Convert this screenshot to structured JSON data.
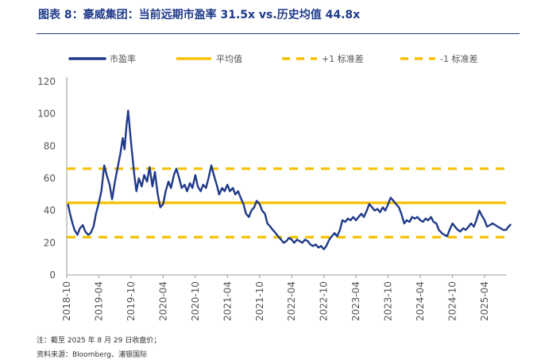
{
  "figure": {
    "title": "图表 8：豪威集团：当前远期市盈率 31.5x vs.历史均值 44.8x",
    "note": "注：截至 2025 年 8 月 29 日收盘价；",
    "source": "资料来源：Bloomberg、浦银国际"
  },
  "chart_data": {
    "type": "line",
    "title": "",
    "xlabel": "",
    "ylabel": "",
    "ylim": [
      0,
      120
    ],
    "yticks": [
      0,
      20,
      40,
      60,
      80,
      100,
      120
    ],
    "xlim": [
      "2018-10",
      "2025-08"
    ],
    "xticks": [
      "2018-10",
      "2019-04",
      "2019-10",
      "2020-04",
      "2020-10",
      "2021-04",
      "2021-10",
      "2022-04",
      "2022-10",
      "2023-04",
      "2023-10",
      "2024-04",
      "2024-10",
      "2025-04"
    ],
    "grid": false,
    "legend_position": "top",
    "colors": {
      "pe": "#1f3a8a",
      "mean": "#f5c000",
      "band": "#f5c000"
    },
    "series": [
      {
        "name": "市盈率",
        "style": "solid-thick",
        "points": [
          [
            "2018-10-08",
            44
          ],
          [
            "2018-10-20",
            38
          ],
          [
            "2018-11-01",
            33
          ],
          [
            "2018-11-15",
            28
          ],
          [
            "2018-12-01",
            25
          ],
          [
            "2018-12-15",
            29
          ],
          [
            "2019-01-01",
            31
          ],
          [
            "2019-01-15",
            27
          ],
          [
            "2019-02-01",
            25
          ],
          [
            "2019-02-15",
            26
          ],
          [
            "2019-03-01",
            30
          ],
          [
            "2019-03-15",
            38
          ],
          [
            "2019-04-01",
            45
          ],
          [
            "2019-04-15",
            52
          ],
          [
            "2019-05-01",
            68
          ],
          [
            "2019-05-15",
            62
          ],
          [
            "2019-06-01",
            56
          ],
          [
            "2019-06-15",
            47
          ],
          [
            "2019-07-01",
            58
          ],
          [
            "2019-07-15",
            66
          ],
          [
            "2019-08-01",
            75
          ],
          [
            "2019-08-15",
            85
          ],
          [
            "2019-08-25",
            78
          ],
          [
            "2019-09-05",
            92
          ],
          [
            "2019-09-15",
            102
          ],
          [
            "2019-09-25",
            90
          ],
          [
            "2019-10-05",
            78
          ],
          [
            "2019-10-20",
            62
          ],
          [
            "2019-11-01",
            52
          ],
          [
            "2019-11-15",
            60
          ],
          [
            "2019-12-01",
            55
          ],
          [
            "2019-12-15",
            62
          ],
          [
            "2020-01-01",
            58
          ],
          [
            "2020-01-15",
            67
          ],
          [
            "2020-02-01",
            55
          ],
          [
            "2020-02-15",
            64
          ],
          [
            "2020-03-01",
            50
          ],
          [
            "2020-03-15",
            42
          ],
          [
            "2020-04-01",
            44
          ],
          [
            "2020-04-15",
            52
          ],
          [
            "2020-05-01",
            58
          ],
          [
            "2020-05-15",
            54
          ],
          [
            "2020-06-01",
            62
          ],
          [
            "2020-06-15",
            66
          ],
          [
            "2020-07-01",
            60
          ],
          [
            "2020-07-15",
            54
          ],
          [
            "2020-08-01",
            56
          ],
          [
            "2020-08-15",
            52
          ],
          [
            "2020-09-01",
            57
          ],
          [
            "2020-09-15",
            54
          ],
          [
            "2020-10-01",
            62
          ],
          [
            "2020-10-15",
            55
          ],
          [
            "2020-11-01",
            52
          ],
          [
            "2020-11-15",
            56
          ],
          [
            "2020-12-01",
            54
          ],
          [
            "2020-12-15",
            60
          ],
          [
            "2021-01-01",
            68
          ],
          [
            "2021-01-15",
            62
          ],
          [
            "2021-02-01",
            56
          ],
          [
            "2021-02-15",
            50
          ],
          [
            "2021-03-01",
            54
          ],
          [
            "2021-03-15",
            52
          ],
          [
            "2021-04-01",
            56
          ],
          [
            "2021-04-15",
            52
          ],
          [
            "2021-05-01",
            54
          ],
          [
            "2021-05-15",
            50
          ],
          [
            "2021-06-01",
            52
          ],
          [
            "2021-06-15",
            48
          ],
          [
            "2021-07-01",
            44
          ],
          [
            "2021-07-15",
            38
          ],
          [
            "2021-08-01",
            36
          ],
          [
            "2021-08-15",
            40
          ],
          [
            "2021-09-01",
            42
          ],
          [
            "2021-09-15",
            46
          ],
          [
            "2021-10-01",
            44
          ],
          [
            "2021-10-15",
            40
          ],
          [
            "2021-11-01",
            38
          ],
          [
            "2021-11-15",
            32
          ],
          [
            "2021-12-01",
            30
          ],
          [
            "2021-12-15",
            28
          ],
          [
            "2022-01-01",
            26
          ],
          [
            "2022-01-15",
            24
          ],
          [
            "2022-02-01",
            22
          ],
          [
            "2022-02-15",
            20
          ],
          [
            "2022-03-01",
            21
          ],
          [
            "2022-03-15",
            23
          ],
          [
            "2022-04-01",
            22
          ],
          [
            "2022-04-15",
            20
          ],
          [
            "2022-05-01",
            22
          ],
          [
            "2022-05-15",
            21
          ],
          [
            "2022-06-01",
            20
          ],
          [
            "2022-06-15",
            22
          ],
          [
            "2022-07-01",
            21
          ],
          [
            "2022-07-15",
            19
          ],
          [
            "2022-08-01",
            18
          ],
          [
            "2022-08-15",
            19
          ],
          [
            "2022-09-01",
            17
          ],
          [
            "2022-09-15",
            18
          ],
          [
            "2022-10-01",
            16
          ],
          [
            "2022-10-15",
            18
          ],
          [
            "2022-11-01",
            22
          ],
          [
            "2022-11-15",
            24
          ],
          [
            "2022-12-01",
            26
          ],
          [
            "2022-12-15",
            24
          ],
          [
            "2023-01-01",
            28
          ],
          [
            "2023-01-15",
            34
          ],
          [
            "2023-02-01",
            33
          ],
          [
            "2023-02-15",
            35
          ],
          [
            "2023-03-01",
            34
          ],
          [
            "2023-03-15",
            36
          ],
          [
            "2023-04-01",
            34
          ],
          [
            "2023-04-15",
            36
          ],
          [
            "2023-05-01",
            38
          ],
          [
            "2023-05-15",
            36
          ],
          [
            "2023-06-01",
            40
          ],
          [
            "2023-06-15",
            44
          ],
          [
            "2023-07-01",
            42
          ],
          [
            "2023-07-15",
            40
          ],
          [
            "2023-08-01",
            41
          ],
          [
            "2023-08-15",
            39
          ],
          [
            "2023-09-01",
            42
          ],
          [
            "2023-09-15",
            40
          ],
          [
            "2023-10-01",
            44
          ],
          [
            "2023-10-15",
            48
          ],
          [
            "2023-11-01",
            46
          ],
          [
            "2023-11-15",
            44
          ],
          [
            "2023-12-01",
            42
          ],
          [
            "2023-12-15",
            38
          ],
          [
            "2024-01-01",
            32
          ],
          [
            "2024-01-15",
            34
          ],
          [
            "2024-02-01",
            33
          ],
          [
            "2024-02-15",
            36
          ],
          [
            "2024-03-01",
            35
          ],
          [
            "2024-03-15",
            36
          ],
          [
            "2024-04-01",
            34
          ],
          [
            "2024-04-15",
            33
          ],
          [
            "2024-05-01",
            35
          ],
          [
            "2024-05-15",
            34
          ],
          [
            "2024-06-01",
            36
          ],
          [
            "2024-06-15",
            33
          ],
          [
            "2024-07-01",
            32
          ],
          [
            "2024-07-15",
            28
          ],
          [
            "2024-08-01",
            26
          ],
          [
            "2024-08-15",
            25
          ],
          [
            "2024-09-01",
            24
          ],
          [
            "2024-09-15",
            28
          ],
          [
            "2024-10-01",
            32
          ],
          [
            "2024-10-15",
            30
          ],
          [
            "2024-11-01",
            28
          ],
          [
            "2024-11-15",
            27
          ],
          [
            "2024-12-01",
            29
          ],
          [
            "2024-12-15",
            28
          ],
          [
            "2025-01-01",
            30
          ],
          [
            "2025-01-15",
            32
          ],
          [
            "2025-02-01",
            30
          ],
          [
            "2025-02-15",
            34
          ],
          [
            "2025-03-01",
            40
          ],
          [
            "2025-03-15",
            37
          ],
          [
            "2025-04-01",
            34
          ],
          [
            "2025-04-15",
            30
          ],
          [
            "2025-05-01",
            31
          ],
          [
            "2025-05-15",
            32
          ],
          [
            "2025-06-01",
            31
          ],
          [
            "2025-06-15",
            30
          ],
          [
            "2025-07-01",
            29
          ],
          [
            "2025-07-15",
            28
          ],
          [
            "2025-08-01",
            28
          ],
          [
            "2025-08-15",
            30
          ],
          [
            "2025-08-29",
            31.5
          ]
        ]
      },
      {
        "name": "平均值",
        "style": "solid",
        "value": 44.8
      },
      {
        "name": "+1 标准差",
        "style": "dashed",
        "value": 66
      },
      {
        "name": "-1 标准差",
        "style": "dashed",
        "value": 23.5
      }
    ]
  }
}
